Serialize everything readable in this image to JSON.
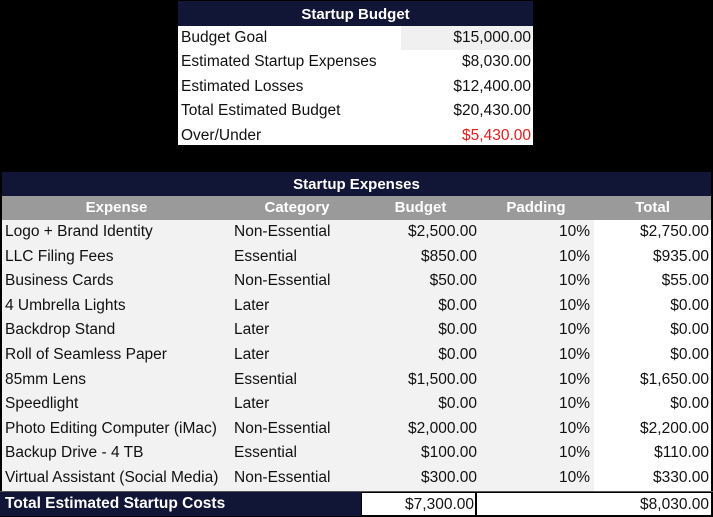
{
  "budget": {
    "title": "Startup Budget",
    "rows": [
      {
        "label": "Budget Goal",
        "value": "$15,000.00"
      },
      {
        "label": "Estimated Startup Expenses",
        "value": "$8,030.00"
      },
      {
        "label": "Estimated Losses",
        "value": "$12,400.00"
      },
      {
        "label": "Total Estimated Budget",
        "value": "$20,430.00"
      },
      {
        "label": "Over/Under",
        "value": "$5,430.00"
      }
    ]
  },
  "expenses": {
    "title": "Startup Expenses",
    "headers": [
      "Expense",
      "Category",
      "Budget",
      "Padding",
      "Total"
    ],
    "rows": [
      [
        "Logo + Brand Identity",
        "Non-Essential",
        "$2,500.00",
        "10%",
        "$2,750.00"
      ],
      [
        "LLC Filing Fees",
        "Essential",
        "$850.00",
        "10%",
        "$935.00"
      ],
      [
        "Business Cards",
        "Non-Essential",
        "$50.00",
        "10%",
        "$55.00"
      ],
      [
        "4 Umbrella Lights",
        "Later",
        "$0.00",
        "10%",
        "$0.00"
      ],
      [
        "Backdrop Stand",
        "Later",
        "$0.00",
        "10%",
        "$0.00"
      ],
      [
        "Roll of Seamless Paper",
        "Later",
        "$0.00",
        "10%",
        "$0.00"
      ],
      [
        "85mm Lens",
        "Essential",
        "$1,500.00",
        "10%",
        "$1,650.00"
      ],
      [
        "Speedlight",
        "Later",
        "$0.00",
        "10%",
        "$0.00"
      ],
      [
        "Photo Editing Computer (iMac)",
        "Non-Essential",
        "$2,000.00",
        "10%",
        "$2,200.00"
      ],
      [
        "Backup Drive - 4 TB",
        "Essential",
        "$100.00",
        "10%",
        "$110.00"
      ],
      [
        "Virtual Assistant (Social Media)",
        "Non-Essential",
        "$300.00",
        "10%",
        "$330.00"
      ]
    ],
    "total": {
      "label": "Total Estimated Startup Costs",
      "budget": "$7,300.00",
      "total": "$8,030.00"
    }
  },
  "colors": {
    "header_navy": "#111637",
    "header_gray": "#9a9a9a",
    "over_under_red": "#e31c1c"
  }
}
